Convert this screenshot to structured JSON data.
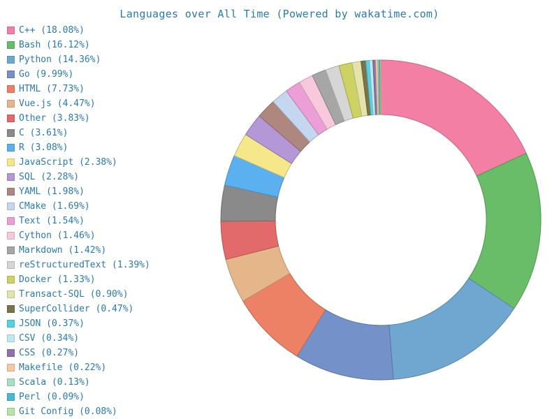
{
  "chart_data": {
    "type": "pie",
    "title": "Languages over All Time (Powered by wakatime.com)",
    "legend_position": "left",
    "slices": [
      {
        "label": "C++ (18.08%)",
        "name": "C++",
        "value": 18.08,
        "color": "#f47fa4"
      },
      {
        "label": "Bash (16.12%)",
        "name": "Bash",
        "value": 16.12,
        "color": "#69bc68"
      },
      {
        "label": "Python (14.36%)",
        "name": "Python",
        "value": 14.36,
        "color": "#6fa7d0"
      },
      {
        "label": "Go (9.99%)",
        "name": "Go",
        "value": 9.99,
        "color": "#7591c9"
      },
      {
        "label": "HTML (7.73%)",
        "name": "HTML",
        "value": 7.73,
        "color": "#ec8166"
      },
      {
        "label": "Vue.js (4.47%)",
        "name": "Vue.js",
        "value": 4.47,
        "color": "#e6b68b"
      },
      {
        "label": "Other (3.83%)",
        "name": "Other",
        "value": 3.83,
        "color": "#e36a6a"
      },
      {
        "label": "C (3.61%)",
        "name": "C",
        "value": 3.61,
        "color": "#8a8a8a"
      },
      {
        "label": "R (3.08%)",
        "name": "R",
        "value": 3.08,
        "color": "#5bb0ef"
      },
      {
        "label": "JavaScript (2.38%)",
        "name": "JavaScript",
        "value": 2.38,
        "color": "#f6e78a"
      },
      {
        "label": "SQL (2.28%)",
        "name": "SQL",
        "value": 2.28,
        "color": "#b397d6"
      },
      {
        "label": "YAML (1.98%)",
        "name": "YAML",
        "value": 1.98,
        "color": "#ae877f"
      },
      {
        "label": "CMake (1.69%)",
        "name": "CMake",
        "value": 1.69,
        "color": "#c4d6f0"
      },
      {
        "label": "Text (1.54%)",
        "name": "Text",
        "value": 1.54,
        "color": "#ec9fd7"
      },
      {
        "label": "Cython (1.46%)",
        "name": "Cython",
        "value": 1.46,
        "color": "#f8c8dc"
      },
      {
        "label": "Markdown (1.42%)",
        "name": "Markdown",
        "value": 1.42,
        "color": "#a6a6a6"
      },
      {
        "label": "reStructuredText (1.39%)",
        "name": "reStructuredText",
        "value": 1.39,
        "color": "#d6d6d6"
      },
      {
        "label": "Docker (1.33%)",
        "name": "Docker",
        "value": 1.33,
        "color": "#cdd262"
      },
      {
        "label": "Transact-SQL (0.90%)",
        "name": "Transact-SQL",
        "value": 0.9,
        "color": "#e3e3ab"
      },
      {
        "label": "SuperCollider (0.47%)",
        "name": "SuperCollider",
        "value": 0.47,
        "color": "#7b744b"
      },
      {
        "label": "JSON (0.37%)",
        "name": "JSON",
        "value": 0.37,
        "color": "#56d2e0"
      },
      {
        "label": "CSV (0.34%)",
        "name": "CSV",
        "value": 0.34,
        "color": "#bfe9f0"
      },
      {
        "label": "CSS (0.27%)",
        "name": "CSS",
        "value": 0.27,
        "color": "#8c74ab"
      },
      {
        "label": "Makefile (0.22%)",
        "name": "Makefile",
        "value": 0.22,
        "color": "#f9c8a1"
      },
      {
        "label": "Scala (0.13%)",
        "name": "Scala",
        "value": 0.13,
        "color": "#a4dfc6"
      },
      {
        "label": "Perl (0.09%)",
        "name": "Perl",
        "value": 0.09,
        "color": "#4cb6d6"
      },
      {
        "label": "Git Config (0.08%)",
        "name": "Git Config",
        "value": 0.08,
        "color": "#b3e8a6"
      }
    ]
  }
}
